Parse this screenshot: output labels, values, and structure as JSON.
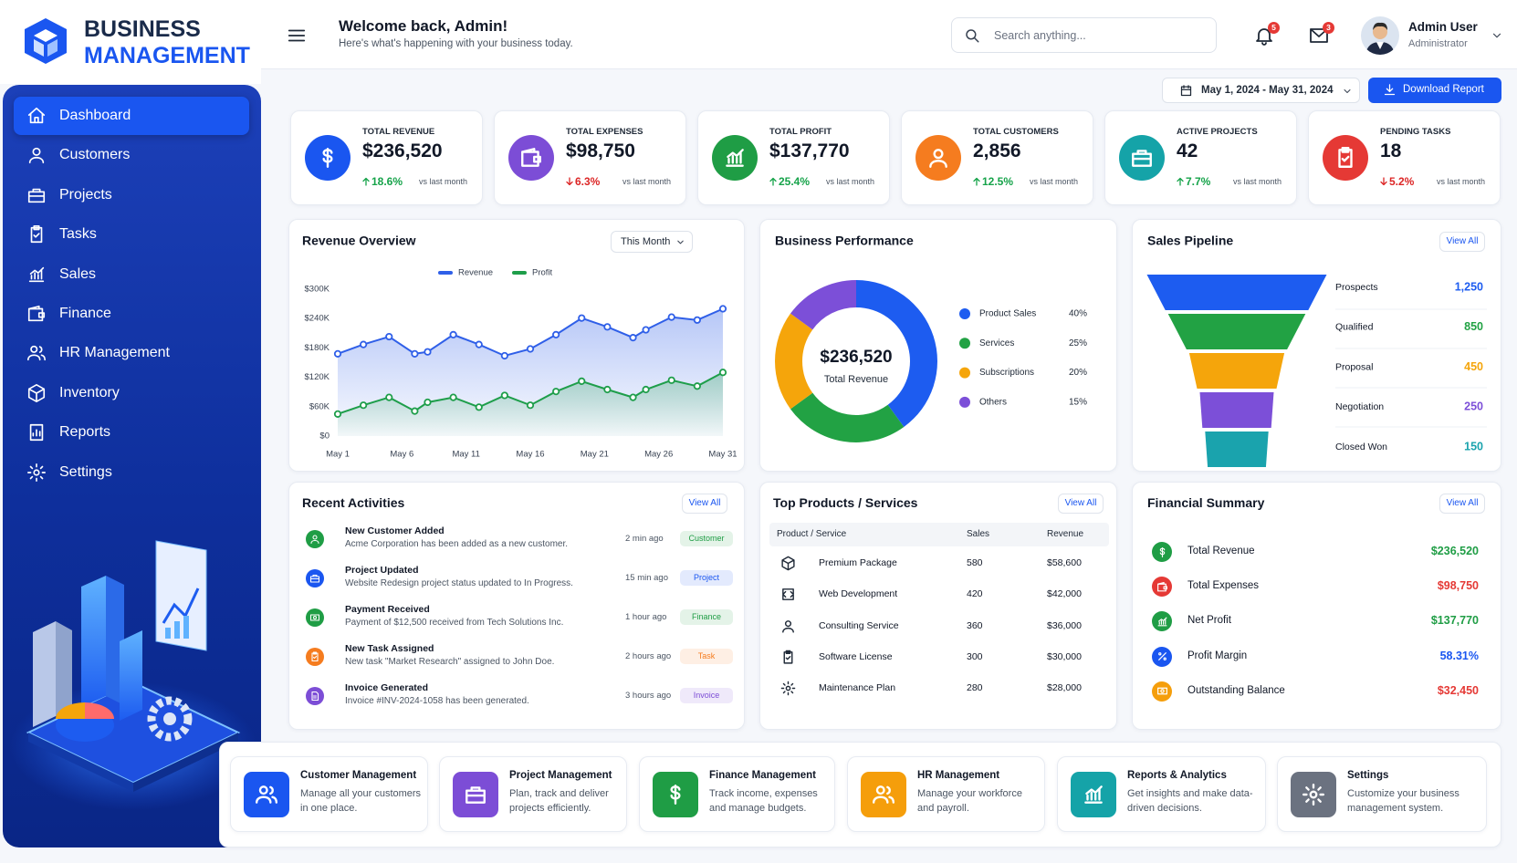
{
  "brand": {
    "line1": "BUSINESS",
    "line2": "MANAGEMENT"
  },
  "nav": {
    "items": [
      "Dashboard",
      "Customers",
      "Projects",
      "Tasks",
      "Sales",
      "Finance",
      "HR Management",
      "Inventory",
      "Reports",
      "Settings"
    ],
    "active": 0
  },
  "header": {
    "title": "Welcome back, Admin!",
    "subtitle": "Here's what's happening with your business today.",
    "search_placeholder": "Search anything...",
    "notifications": 5,
    "messages": 3,
    "user_name": "Admin User",
    "user_role": "Administrator"
  },
  "toolbar": {
    "date_range": "May 1, 2024 - May 31, 2024",
    "download": "Download Report"
  },
  "kpis": [
    {
      "label": "TOTAL REVENUE",
      "value": "$236,520",
      "change": "18.6%",
      "direction": "up",
      "note": "vs last month",
      "color": "#1a56f0"
    },
    {
      "label": "TOTAL EXPENSES",
      "value": "$98,750",
      "change": "6.3%",
      "direction": "down",
      "note": "vs last month",
      "color": "#7c4dd6"
    },
    {
      "label": "TOTAL PROFIT",
      "value": "$137,770",
      "change": "25.4%",
      "direction": "up",
      "note": "vs last month",
      "color": "#1f9d45"
    },
    {
      "label": "TOTAL CUSTOMERS",
      "value": "2,856",
      "change": "12.5%",
      "direction": "up",
      "note": "vs last month",
      "color": "#f57c1f"
    },
    {
      "label": "ACTIVE PROJECTS",
      "value": "42",
      "change": "7.7%",
      "direction": "up",
      "note": "vs last month",
      "color": "#15a3a8"
    },
    {
      "label": "PENDING TASKS",
      "value": "18",
      "change": "5.2%",
      "direction": "down",
      "note": "vs last month",
      "color": "#e53935"
    }
  ],
  "revenue_overview": {
    "type": "line",
    "title": "Revenue Overview",
    "filter": "This Month",
    "x": [
      1,
      3,
      5,
      7,
      8,
      10,
      12,
      14,
      16,
      18,
      20,
      22,
      24,
      25,
      27,
      29,
      31
    ],
    "xlim": [
      1,
      31
    ],
    "xticks": [
      {
        "value": 1,
        "label": "May 1"
      },
      {
        "value": 6,
        "label": "May 6"
      },
      {
        "value": 11,
        "label": "May 11"
      },
      {
        "value": 16,
        "label": "May 16"
      },
      {
        "value": 21,
        "label": "May 21"
      },
      {
        "value": 26,
        "label": "May 26"
      },
      {
        "value": 31,
        "label": "May 31"
      }
    ],
    "ylim": [
      0,
      300000
    ],
    "yticks": [
      {
        "value": 0,
        "label": "$0"
      },
      {
        "value": 60000,
        "label": "$60K"
      },
      {
        "value": 120000,
        "label": "$120K"
      },
      {
        "value": 180000,
        "label": "$180K"
      },
      {
        "value": 240000,
        "label": "$240K"
      },
      {
        "value": 300000,
        "label": "$300K"
      }
    ],
    "grid": false,
    "legend": "top",
    "series": [
      {
        "name": "Revenue",
        "color": "#2f5fe8",
        "values": [
          168000,
          187000,
          203000,
          168000,
          172000,
          207000,
          187000,
          164000,
          178000,
          207000,
          241000,
          223000,
          201000,
          217000,
          243000,
          237000,
          260000
        ]
      },
      {
        "name": "Profit",
        "color": "#1e9e4a",
        "values": [
          45000,
          63000,
          79000,
          51000,
          69000,
          79000,
          59000,
          83000,
          63000,
          91000,
          112000,
          95000,
          79000,
          95000,
          114000,
          102000,
          130000
        ]
      }
    ]
  },
  "business_performance": {
    "type": "pie",
    "title": "Business Performance",
    "center_value": "$236,520",
    "center_label": "Total Revenue",
    "categories": [
      "Product Sales",
      "Services",
      "Subscriptions",
      "Others"
    ],
    "values": [
      40,
      25,
      20,
      15
    ],
    "value_labels": [
      "40%",
      "25%",
      "20%",
      "15%"
    ],
    "colors": [
      "#1d5cf0",
      "#22a244",
      "#f5a50b",
      "#7c4fd8"
    ]
  },
  "sales_pipeline": {
    "type": "funnel",
    "title": "Sales Pipeline",
    "action": "View All",
    "categories": [
      "Prospects",
      "Qualified",
      "Proposal",
      "Negotiation",
      "Closed Won"
    ],
    "values": [
      1250,
      850,
      450,
      250,
      150
    ],
    "value_labels": [
      "1,250",
      "850",
      "450",
      "250",
      "150"
    ],
    "colors": [
      "#1d5cf0",
      "#22a244",
      "#f5a50b",
      "#7c4fd8",
      "#1aa3ad"
    ]
  },
  "recent_activities": {
    "title": "Recent Activities",
    "action": "View All",
    "items": [
      {
        "title": "New Customer Added",
        "description": "Acme Corporation has been added as a new customer.",
        "time": "2 min ago",
        "tag": "Customer",
        "color": "#1f9d45"
      },
      {
        "title": "Project Updated",
        "description": "Website Redesign project status updated to In Progress.",
        "time": "15 min ago",
        "tag": "Project",
        "color": "#1a56f0"
      },
      {
        "title": "Payment Received",
        "description": "Payment of $12,500 received from Tech Solutions Inc.",
        "time": "1 hour ago",
        "tag": "Finance",
        "color": "#1f9d45"
      },
      {
        "title": "New Task Assigned",
        "description": "New task \"Market Research\" assigned to John Doe.",
        "time": "2 hours ago",
        "tag": "Task",
        "color": "#f57c1f"
      },
      {
        "title": "Invoice Generated",
        "description": "Invoice #INV-2024-1058 has been generated.",
        "time": "3 hours ago",
        "tag": "Invoice",
        "color": "#7c4dd6"
      }
    ]
  },
  "top_products": {
    "title": "Top Products / Services",
    "action": "View All",
    "columns": [
      "Product / Service",
      "Sales",
      "Revenue"
    ],
    "rows": [
      [
        "Premium Package",
        "580",
        "$58,600"
      ],
      [
        "Web Development",
        "420",
        "$42,000"
      ],
      [
        "Consulting Service",
        "360",
        "$36,000"
      ],
      [
        "Software License",
        "300",
        "$30,000"
      ],
      [
        "Maintenance Plan",
        "280",
        "$28,000"
      ]
    ]
  },
  "financial_summary": {
    "title": "Financial Summary",
    "action": "View All",
    "rows": [
      {
        "label": "Total Revenue",
        "value": "$236,520",
        "color": "#1f9d45"
      },
      {
        "label": "Total Expenses",
        "value": "$98,750",
        "color": "#e53935"
      },
      {
        "label": "Net Profit",
        "value": "$137,770",
        "color": "#1f9d45"
      },
      {
        "label": "Profit Margin",
        "value": "58.31%",
        "color": "#1a56f0"
      },
      {
        "label": "Outstanding Balance",
        "value": "$32,450",
        "color": "#e53935"
      }
    ]
  },
  "modules": [
    {
      "title": "Customer Management",
      "description": "Manage all your customers in one place.",
      "color": "#1a56f0"
    },
    {
      "title": "Project Management",
      "description": "Plan, track and deliver projects efficiently.",
      "color": "#7c4dd6"
    },
    {
      "title": "Finance Management",
      "description": "Track income, expenses and manage budgets.",
      "color": "#1f9d45"
    },
    {
      "title": "HR Management",
      "description": "Manage your workforce and payroll.",
      "color": "#f59e0b"
    },
    {
      "title": "Reports & Analytics",
      "description": "Get insights and make data-driven decisions.",
      "color": "#15a3a8"
    },
    {
      "title": "Settings",
      "description": "Customize your business management system.",
      "color": "#6b7280"
    }
  ]
}
